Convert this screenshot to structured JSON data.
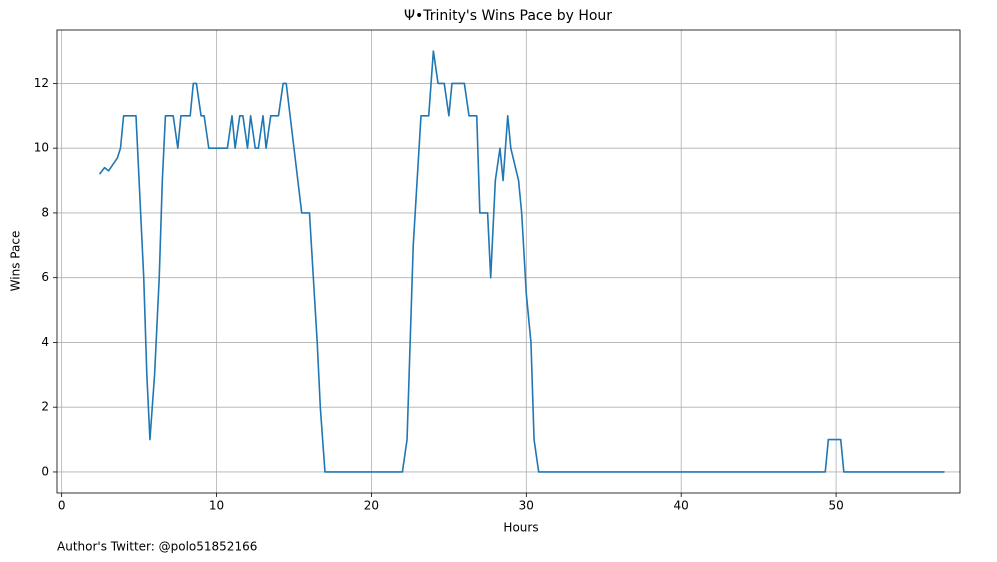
{
  "chart_data": {
    "type": "line",
    "title": "Ψ•Trinity's Wins Pace by Hour",
    "xlabel": "Hours",
    "ylabel": "Wins Pace",
    "footnote": "Author's Twitter: @polo51852166",
    "color": "#1f77b4",
    "grid": true,
    "x": [
      2.45,
      2.77,
      3.03,
      3.6,
      3.8,
      4.0,
      4.8,
      5.0,
      5.3,
      5.5,
      5.7,
      6.0,
      6.3,
      6.5,
      6.7,
      7.2,
      7.5,
      7.7,
      8.3,
      8.5,
      8.7,
      9.0,
      9.2,
      9.5,
      10.7,
      11.0,
      11.2,
      11.5,
      11.7,
      12.0,
      12.2,
      12.5,
      12.7,
      13.0,
      13.2,
      13.5,
      14.0,
      14.3,
      14.5,
      15.0,
      15.5,
      16.0,
      16.5,
      16.7,
      17.0,
      22.0,
      22.3,
      22.7,
      23.2,
      23.7,
      24.0,
      24.3,
      24.7,
      25.0,
      25.2,
      26.0,
      26.3,
      26.8,
      27.0,
      27.5,
      27.7,
      28.0,
      28.3,
      28.5,
      28.8,
      29.0,
      29.5,
      29.7,
      30.0,
      30.3,
      30.5,
      30.8,
      49.3,
      49.5,
      50.3,
      50.5,
      57.0
    ],
    "values": [
      9.2,
      9.4,
      9.3,
      9.7,
      10,
      11,
      11,
      9,
      6,
      3,
      1,
      3,
      6,
      9,
      11,
      11,
      10,
      11,
      11,
      12,
      12,
      11,
      11,
      10,
      10,
      11,
      10,
      11,
      11,
      10,
      11,
      10,
      10,
      11,
      10,
      11,
      11,
      12,
      12,
      10,
      8,
      8,
      4,
      2,
      0,
      0,
      1,
      7,
      11,
      11,
      13,
      12,
      12,
      11,
      12,
      12,
      11,
      11,
      8,
      8,
      6,
      9,
      10,
      9,
      11,
      10,
      9,
      8,
      5.5,
      4,
      1,
      0,
      0,
      1,
      1,
      0,
      0
    ],
    "xlim": [
      -0.3,
      58.0
    ],
    "xticks": [
      0,
      10,
      20,
      30,
      40,
      50
    ],
    "ylim": [
      -0.65,
      13.65
    ],
    "yticks": [
      0,
      2,
      4,
      6,
      8,
      10,
      12
    ]
  }
}
